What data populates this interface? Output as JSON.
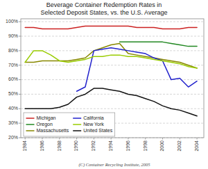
{
  "chart_data": {
    "type": "line",
    "title": "Beverage Container Redemption Rates in\nSelected Deposit States, vs. the U.S. Average",
    "caption": "(C) Container Recycling Institute, 2005",
    "x": [
      1984,
      1985,
      1986,
      1987,
      1988,
      1989,
      1990,
      1991,
      1992,
      1993,
      1994,
      1995,
      1996,
      1997,
      1998,
      1999,
      2000,
      2001,
      2002,
      2003,
      2004
    ],
    "series": [
      {
        "name": "Michigan",
        "color": "#cc2222",
        "values": [
          96,
          96,
          95,
          95,
          95,
          95,
          96,
          97,
          97,
          97,
          97,
          97,
          97,
          96,
          96,
          96,
          95,
          95,
          95,
          96,
          96
        ]
      },
      {
        "name": "Oregon",
        "color": "#228822",
        "values": [
          null,
          null,
          null,
          null,
          null,
          null,
          null,
          null,
          null,
          null,
          null,
          86,
          86,
          86,
          86,
          86,
          86,
          85,
          84,
          83,
          83
        ]
      },
      {
        "name": "Massachusetts",
        "color": "#888800",
        "values": [
          72,
          72,
          73,
          73,
          73,
          73,
          74,
          75,
          80,
          82,
          84,
          85,
          78,
          77,
          76,
          75,
          74,
          73,
          72,
          70,
          68
        ]
      },
      {
        "name": "California",
        "color": "#2222cc",
        "values": [
          null,
          null,
          null,
          null,
          null,
          null,
          52,
          55,
          80,
          81,
          82,
          81,
          80,
          79,
          78,
          75,
          73,
          60,
          61,
          55,
          59
        ]
      },
      {
        "name": "New York",
        "color": "#99cc00",
        "values": [
          72,
          80,
          80,
          77,
          73,
          72,
          73,
          74,
          76,
          76,
          77,
          77,
          76,
          76,
          75,
          74,
          73,
          72,
          71,
          69,
          68
        ]
      },
      {
        "name": "United States",
        "color": "#111111",
        "values": [
          40,
          40,
          40,
          40,
          41,
          43,
          48,
          50,
          54,
          54,
          53,
          52,
          50,
          49,
          47,
          45,
          42,
          40,
          39,
          37,
          35
        ]
      }
    ],
    "xlim": [
      1983.5,
      2004.8
    ],
    "xticks": [
      1984,
      1986,
      1988,
      1990,
      1992,
      1994,
      1996,
      1998,
      2000,
      2002,
      2004
    ],
    "ylim": [
      20,
      102
    ],
    "yticks": [
      {
        "value": 20,
        "label": "20%"
      },
      {
        "value": 30,
        "label": "30%"
      },
      {
        "value": 40,
        "label": "40%"
      },
      {
        "value": 50,
        "label": "50%"
      },
      {
        "value": 60,
        "label": "60%"
      },
      {
        "value": 70,
        "label": "70%"
      },
      {
        "value": 80,
        "label": "80%"
      },
      {
        "value": 90,
        "label": "90%"
      },
      {
        "value": 100,
        "label": "100%"
      }
    ],
    "grid": true,
    "legend": "lower left"
  }
}
